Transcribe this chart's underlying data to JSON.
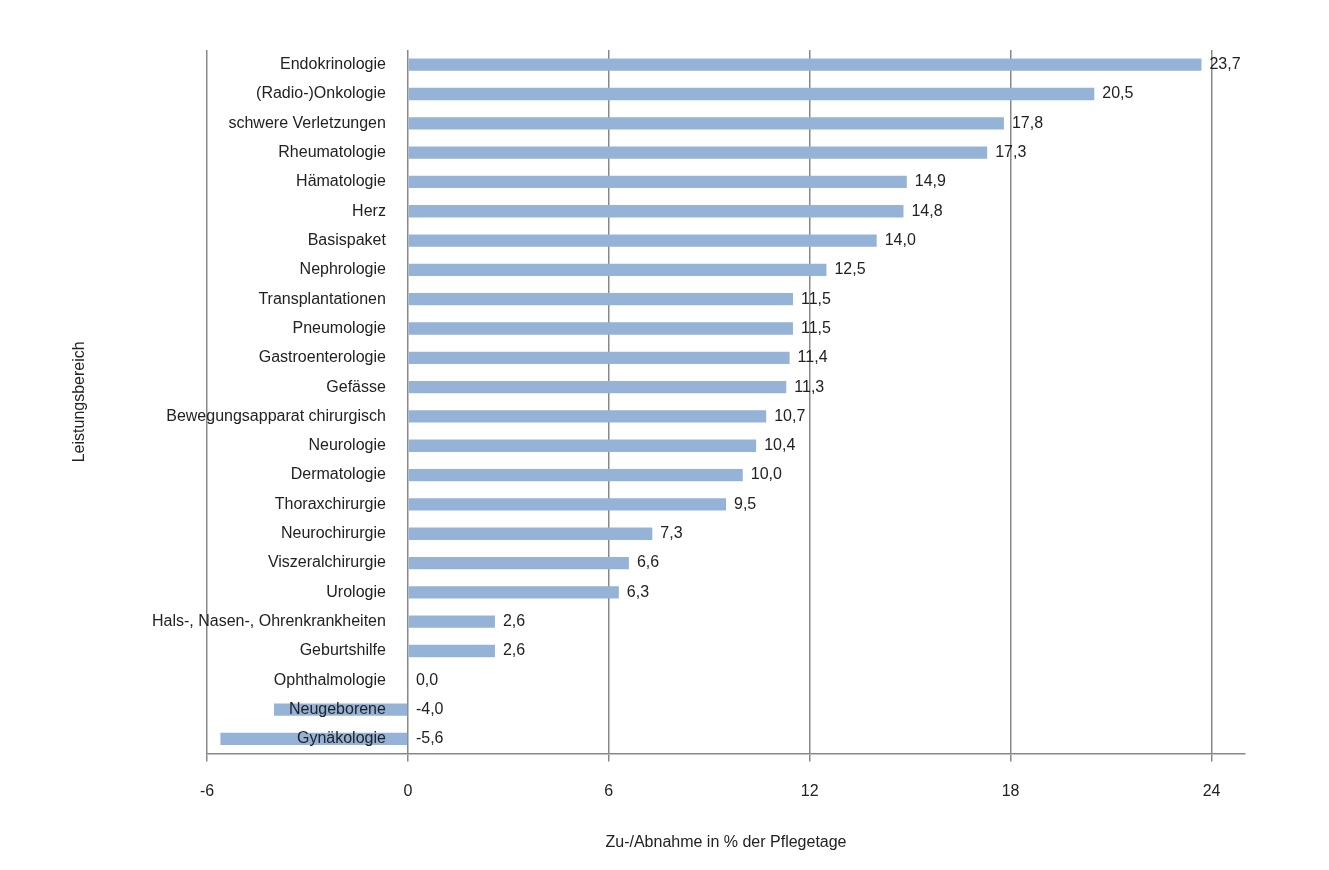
{
  "chart_data": {
    "type": "bar",
    "orientation": "horizontal",
    "xlabel": "Zu-/Abnahme in % der Pflegetage",
    "ylabel": "Leistungsbereich",
    "categories": [
      "Endokrinologie",
      "(Radio-)Onkologie",
      "schwere Verletzungen",
      "Rheumatologie",
      "Hämatologie",
      "Herz",
      "Basispaket",
      "Nephrologie",
      "Transplantationen",
      "Pneumologie",
      "Gastroenterologie",
      "Gefässe",
      "Bewegungsapparat chirurgisch",
      "Neurologie",
      "Dermatologie",
      "Thoraxchirurgie",
      "Neurochirurgie",
      "Viszeralchirurgie",
      "Urologie",
      "Hals-, Nasen-, Ohrenkrankheiten",
      "Geburtshilfe",
      "Ophthalmologie",
      "Neugeborene",
      "Gynäkologie"
    ],
    "values": [
      23.7,
      20.5,
      17.8,
      17.3,
      14.9,
      14.8,
      14.0,
      12.5,
      11.5,
      11.5,
      11.4,
      11.3,
      10.7,
      10.4,
      10.0,
      9.5,
      7.3,
      6.6,
      6.3,
      2.6,
      2.6,
      0.0,
      -4.0,
      -5.6
    ],
    "value_labels": [
      "23,7",
      "20,5",
      "17,8",
      "17,3",
      "14,9",
      "14,8",
      "14,0",
      "12,5",
      "11,5",
      "11,5",
      "11,4",
      "11,3",
      "10,7",
      "10,4",
      "10,0",
      "9,5",
      "7,3",
      "6,6",
      "6,3",
      "2,6",
      "2,6",
      "0,0",
      "-4,0",
      "-5,6"
    ],
    "color": "#95b3d7",
    "xlim": [
      -6,
      25
    ],
    "xticks": [
      -6,
      0,
      6,
      12,
      18,
      24
    ],
    "grid": "x",
    "legend": false
  }
}
